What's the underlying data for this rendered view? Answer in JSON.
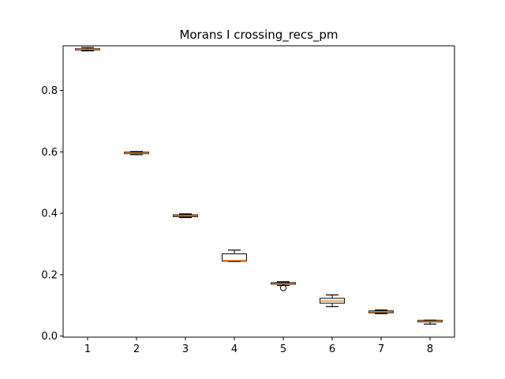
{
  "chart_data": {
    "type": "box",
    "title": "Morans I crossing_recs_pm",
    "xlabel": "",
    "ylabel": "",
    "ylim": [
      -0.0035,
      0.9455
    ],
    "xlim": [
      0.5,
      8.5
    ],
    "grid": false,
    "x_ticks": [
      "1",
      "2",
      "3",
      "4",
      "5",
      "6",
      "7",
      "8"
    ],
    "y_ticks": [
      "0.0",
      "0.2",
      "0.4",
      "0.6",
      "0.8"
    ],
    "y_tick_values": [
      0.0,
      0.2,
      0.4,
      0.6,
      0.8
    ],
    "boxes": [
      {
        "label": "1",
        "whislo": 0.929,
        "q1": 0.932,
        "med": 0.934,
        "q3": 0.936,
        "whishi": 0.94,
        "fliers": []
      },
      {
        "label": "2",
        "whislo": 0.591,
        "q1": 0.594,
        "med": 0.596,
        "q3": 0.599,
        "whishi": 0.601,
        "fliers": []
      },
      {
        "label": "3",
        "whislo": 0.386,
        "q1": 0.389,
        "med": 0.392,
        "q3": 0.395,
        "whishi": 0.398,
        "fliers": []
      },
      {
        "label": "4",
        "whislo": 0.243,
        "q1": 0.244,
        "med": 0.246,
        "q3": 0.268,
        "whishi": 0.28,
        "fliers": []
      },
      {
        "label": "5",
        "whislo": 0.165,
        "q1": 0.169,
        "med": 0.171,
        "q3": 0.174,
        "whishi": 0.177,
        "fliers": [
          0.157
        ]
      },
      {
        "label": "6",
        "whislo": 0.096,
        "q1": 0.107,
        "med": 0.114,
        "q3": 0.123,
        "whishi": 0.134,
        "fliers": []
      },
      {
        "label": "7",
        "whislo": 0.073,
        "q1": 0.076,
        "med": 0.079,
        "q3": 0.082,
        "whishi": 0.085,
        "fliers": []
      },
      {
        "label": "8",
        "whislo": 0.039,
        "q1": 0.046,
        "med": 0.048,
        "q3": 0.051,
        "whishi": 0.052,
        "fliers": []
      }
    ],
    "colors": {
      "box": "#000000",
      "median": "#ff7f0e",
      "axis": "#000000",
      "background": "#ffffff"
    }
  }
}
